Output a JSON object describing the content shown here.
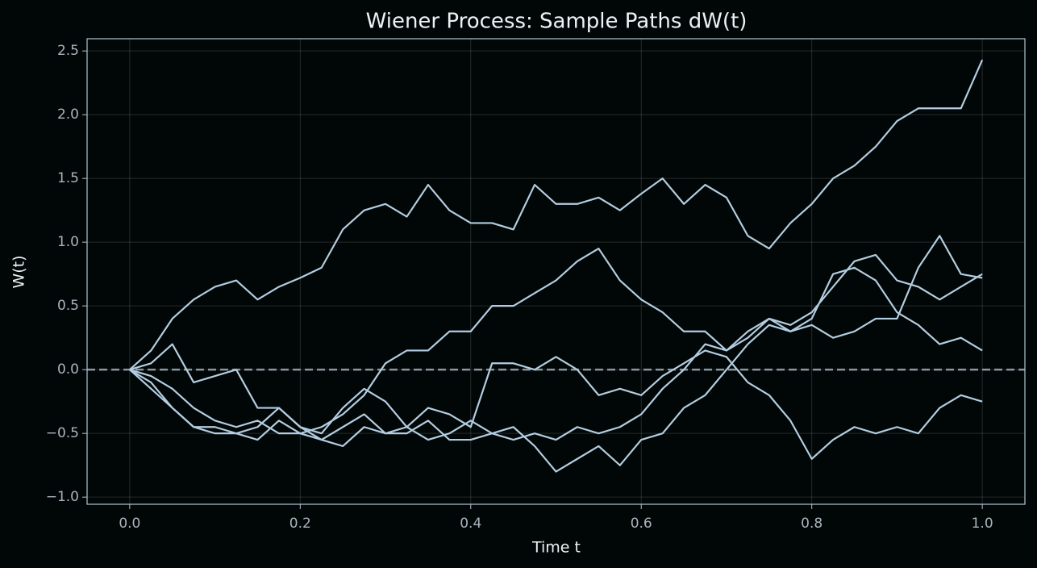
{
  "chart_data": {
    "type": "line",
    "title": "Wiener Process: Sample Paths dW(t)",
    "xlabel": "Time t",
    "ylabel": "W(t)",
    "x": [
      0,
      0.025,
      0.05,
      0.075,
      0.1,
      0.125,
      0.15,
      0.175,
      0.2,
      0.225,
      0.25,
      0.275,
      0.3,
      0.325,
      0.35,
      0.375,
      0.4,
      0.425,
      0.45,
      0.475,
      0.5,
      0.525,
      0.55,
      0.575,
      0.6,
      0.625,
      0.65,
      0.675,
      0.7,
      0.725,
      0.75,
      0.775,
      0.8,
      0.825,
      0.85,
      0.875,
      0.9,
      0.925,
      0.95,
      0.975,
      1.0
    ],
    "series": [
      {
        "color": "#b3cde0",
        "values": [
          0,
          0.15,
          0.4,
          0.55,
          0.65,
          0.7,
          0.55,
          0.65,
          0.72,
          0.8,
          1.1,
          1.25,
          1.3,
          1.2,
          1.45,
          1.25,
          1.15,
          1.15,
          1.1,
          1.45,
          1.3,
          1.3,
          1.35,
          1.25,
          1.38,
          1.5,
          1.3,
          1.45,
          1.35,
          1.05,
          0.95,
          1.15,
          1.3,
          1.5,
          1.6,
          1.75,
          1.95,
          2.05,
          2.05,
          2.05,
          2.43
        ]
      },
      {
        "color": "#b3cde0",
        "values": [
          0,
          -0.15,
          -0.3,
          -0.45,
          -0.5,
          -0.5,
          -0.55,
          -0.4,
          -0.5,
          -0.45,
          -0.35,
          -0.2,
          0.05,
          0.15,
          0.15,
          0.3,
          0.3,
          0.5,
          0.5,
          0.6,
          0.7,
          0.85,
          0.95,
          0.7,
          0.55,
          0.45,
          0.3,
          0.3,
          0.15,
          0.3,
          0.4,
          0.3,
          0.35,
          0.25,
          0.3,
          0.4,
          0.4,
          0.8,
          1.05,
          0.75,
          0.72
        ]
      },
      {
        "color": "#b3cde0",
        "values": [
          0,
          0.05,
          0.2,
          -0.1,
          -0.05,
          0,
          -0.3,
          -0.3,
          -0.45,
          -0.55,
          -0.45,
          -0.35,
          -0.5,
          -0.45,
          -0.3,
          -0.35,
          -0.45,
          0.05,
          0.05,
          0,
          0.1,
          0,
          -0.2,
          -0.15,
          -0.2,
          -0.05,
          0.05,
          0.15,
          0.1,
          -0.1,
          -0.2,
          -0.4,
          -0.7,
          -0.55,
          -0.45,
          -0.5,
          -0.45,
          -0.5,
          -0.3,
          -0.2,
          -0.25
        ]
      },
      {
        "color": "#b3cde0",
        "values": [
          0,
          -0.1,
          -0.3,
          -0.45,
          -0.45,
          -0.5,
          -0.45,
          -0.3,
          -0.45,
          -0.5,
          -0.3,
          -0.15,
          -0.25,
          -0.45,
          -0.55,
          -0.5,
          -0.4,
          -0.5,
          -0.45,
          -0.6,
          -0.8,
          -0.7,
          -0.6,
          -0.75,
          -0.55,
          -0.5,
          -0.3,
          -0.2,
          0,
          0.2,
          0.35,
          0.3,
          0.4,
          0.75,
          0.8,
          0.7,
          0.45,
          0.35,
          0.2,
          0.25,
          0.15
        ]
      },
      {
        "color": "#b3cde0",
        "values": [
          0,
          -0.05,
          -0.15,
          -0.3,
          -0.4,
          -0.45,
          -0.4,
          -0.5,
          -0.5,
          -0.55,
          -0.6,
          -0.45,
          -0.5,
          -0.5,
          -0.4,
          -0.55,
          -0.55,
          -0.5,
          -0.55,
          -0.5,
          -0.55,
          -0.45,
          -0.5,
          -0.45,
          -0.35,
          -0.15,
          0,
          0.2,
          0.15,
          0.25,
          0.4,
          0.35,
          0.45,
          0.65,
          0.85,
          0.9,
          0.7,
          0.65,
          0.55,
          0.65,
          0.75
        ]
      }
    ],
    "hline": 0,
    "xlim": [
      -0.05,
      1.05
    ],
    "ylim": [
      -1.056,
      2.596
    ],
    "xticks": [
      {
        "value": 0,
        "label": "0.0"
      },
      {
        "value": 0.2,
        "label": "0.2"
      },
      {
        "value": 0.4,
        "label": "0.4"
      },
      {
        "value": 0.6,
        "label": "0.6"
      },
      {
        "value": 0.8,
        "label": "0.8"
      },
      {
        "value": 1.0,
        "label": "1.0"
      }
    ],
    "yticks": [
      {
        "value": -1.0,
        "label": "−1.0"
      },
      {
        "value": -0.5,
        "label": "−0.5"
      },
      {
        "value": 0,
        "label": "0.0"
      },
      0.5,
      {
        "value": 1.0,
        "label": "1.0"
      },
      1.5,
      {
        "value": 2.0,
        "label": "2.0"
      },
      2.5
    ],
    "grid": true
  }
}
